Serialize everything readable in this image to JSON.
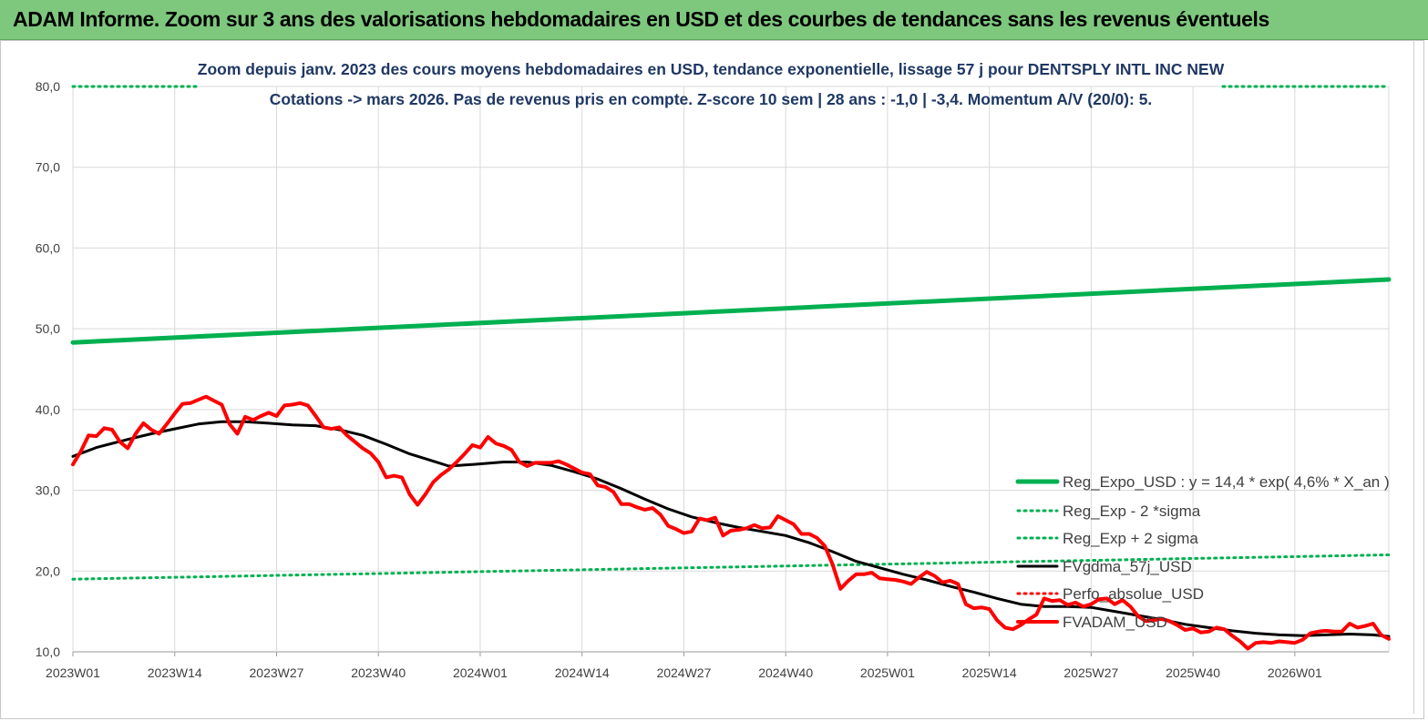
{
  "banner": {
    "title": "ADAM Informe. Zoom sur 3 ans des valorisations hebdomadaires en USD et des courbes de tendances sans les revenus éventuels"
  },
  "colors": {
    "banner_bg": "#7ec87e",
    "title_text": "#1f3864",
    "trend_green": "#00b050",
    "price_red": "#ff0000",
    "mma_black": "#000000"
  },
  "chart_data": {
    "type": "line",
    "title": "Zoom depuis janv. 2023 des cours moyens hebdomadaires en USD, tendance exponentielle, lissage 57 j pour DENTSPLY INTL INC NEW",
    "subtitle": "Cotations -> mars 2026. Pas de revenus pris en compte. Z-score 10 sem  | 28 ans : -1,0 | -3,4. Momentum A/V (20/0): 5.",
    "xlabel": "",
    "ylabel": "",
    "ylim": [
      10,
      80
    ],
    "yticks": [
      "80,0",
      "70,0",
      "60,0",
      "50,0",
      "40,0",
      "30,0",
      "20,0",
      "10,0"
    ],
    "xlim": [
      0,
      168
    ],
    "xticks": [
      {
        "label": "2023W01",
        "x": 0
      },
      {
        "label": "2023W14",
        "x": 13
      },
      {
        "label": "2023W27",
        "x": 26
      },
      {
        "label": "2023W40",
        "x": 39
      },
      {
        "label": "2024W01",
        "x": 52
      },
      {
        "label": "2024W14",
        "x": 65
      },
      {
        "label": "2024W27",
        "x": 78
      },
      {
        "label": "2024W40",
        "x": 91
      },
      {
        "label": "2025W01",
        "x": 104
      },
      {
        "label": "2025W14",
        "x": 117
      },
      {
        "label": "2025W27",
        "x": 130
      },
      {
        "label": "2025W40",
        "x": 143
      },
      {
        "label": "2026W01",
        "x": 156
      }
    ],
    "grid": true,
    "legend_position": "right",
    "series": [
      {
        "name": "Reg_Expo_USD : y = 14,4 * exp( 4,6% *  X_an )",
        "style": "solid-thick",
        "color": "#00b050",
        "points": [
          [
            0,
            48.3
          ],
          [
            168,
            56.1
          ]
        ]
      },
      {
        "name": "Reg_Exp - 2 *sigma",
        "style": "dotted",
        "color": "#00b050",
        "points": [
          [
            0,
            19.0
          ],
          [
            168,
            22.0
          ]
        ]
      },
      {
        "name": "Reg_Exp + 2 sigma",
        "style": "dotted",
        "color": "#00b050",
        "points": [
          [
            0,
            80.0
          ],
          [
            168,
            80.0
          ]
        ]
      },
      {
        "name": "FVgdma_57j_USD",
        "style": "solid",
        "color": "#000000",
        "points": [
          [
            0,
            34.2
          ],
          [
            3,
            35.3
          ],
          [
            7,
            36.3
          ],
          [
            10,
            37.0
          ],
          [
            13,
            37.6
          ],
          [
            16,
            38.2
          ],
          [
            19,
            38.5
          ],
          [
            22,
            38.5
          ],
          [
            25,
            38.3
          ],
          [
            28,
            38.1
          ],
          [
            31,
            38.0
          ],
          [
            34,
            37.5
          ],
          [
            37,
            36.8
          ],
          [
            40,
            35.7
          ],
          [
            43,
            34.5
          ],
          [
            46,
            33.6
          ],
          [
            48,
            33.0
          ],
          [
            51,
            33.2
          ],
          [
            55,
            33.5
          ],
          [
            58,
            33.5
          ],
          [
            61,
            33.1
          ],
          [
            64,
            32.3
          ],
          [
            67,
            31.4
          ],
          [
            70,
            30.2
          ],
          [
            73,
            28.9
          ],
          [
            76,
            27.7
          ],
          [
            79,
            26.7
          ],
          [
            82,
            26.0
          ],
          [
            85,
            25.4
          ],
          [
            88,
            24.9
          ],
          [
            91,
            24.4
          ],
          [
            94,
            23.5
          ],
          [
            97,
            22.4
          ],
          [
            100,
            21.2
          ],
          [
            103,
            20.4
          ],
          [
            106,
            19.6
          ],
          [
            109,
            18.9
          ],
          [
            112,
            18.1
          ],
          [
            115,
            17.4
          ],
          [
            118,
            16.6
          ],
          [
            121,
            15.9
          ],
          [
            124,
            15.6
          ],
          [
            127,
            15.6
          ],
          [
            130,
            15.5
          ],
          [
            133,
            15.0
          ],
          [
            136,
            14.5
          ],
          [
            139,
            14.0
          ],
          [
            142,
            13.4
          ],
          [
            145,
            13.0
          ],
          [
            148,
            12.6
          ],
          [
            151,
            12.3
          ],
          [
            154,
            12.1
          ],
          [
            157,
            12.0
          ],
          [
            160,
            12.1
          ],
          [
            163,
            12.2
          ],
          [
            166,
            12.1
          ],
          [
            168,
            11.9
          ]
        ]
      },
      {
        "name": "Perfo_absolue_USD",
        "style": "dotted",
        "color": "#ff0000",
        "points": []
      },
      {
        "name": "FVADAM_USD",
        "style": "solid-thick",
        "color": "#ff0000",
        "points": [
          [
            0,
            33.2
          ],
          [
            1,
            34.8
          ],
          [
            2,
            36.8
          ],
          [
            3,
            36.7
          ],
          [
            4,
            37.7
          ],
          [
            5,
            37.5
          ],
          [
            6,
            36.0
          ],
          [
            7,
            35.2
          ],
          [
            8,
            37.0
          ],
          [
            9,
            38.3
          ],
          [
            10,
            37.5
          ],
          [
            11,
            37.0
          ],
          [
            12,
            38.2
          ],
          [
            13,
            39.5
          ],
          [
            14,
            40.7
          ],
          [
            15,
            40.8
          ],
          [
            16,
            41.2
          ],
          [
            17,
            41.6
          ],
          [
            18,
            41.1
          ],
          [
            19,
            40.6
          ],
          [
            20,
            38.2
          ],
          [
            21,
            37.0
          ],
          [
            22,
            39.1
          ],
          [
            23,
            38.7
          ],
          [
            24,
            39.2
          ],
          [
            25,
            39.6
          ],
          [
            26,
            39.2
          ],
          [
            27,
            40.5
          ],
          [
            28,
            40.6
          ],
          [
            29,
            40.8
          ],
          [
            30,
            40.5
          ],
          [
            31,
            39.2
          ],
          [
            32,
            37.8
          ],
          [
            33,
            37.6
          ],
          [
            34,
            37.8
          ],
          [
            35,
            36.8
          ],
          [
            36,
            36.0
          ],
          [
            37,
            35.2
          ],
          [
            38,
            34.6
          ],
          [
            39,
            33.5
          ],
          [
            40,
            31.6
          ],
          [
            41,
            31.8
          ],
          [
            42,
            31.6
          ],
          [
            43,
            29.5
          ],
          [
            44,
            28.2
          ],
          [
            45,
            29.5
          ],
          [
            46,
            31.0
          ],
          [
            47,
            31.9
          ],
          [
            48,
            32.6
          ],
          [
            49,
            33.5
          ],
          [
            50,
            34.5
          ],
          [
            51,
            35.6
          ],
          [
            52,
            35.3
          ],
          [
            53,
            36.6
          ],
          [
            54,
            35.8
          ],
          [
            55,
            35.5
          ],
          [
            56,
            35.0
          ],
          [
            57,
            33.5
          ],
          [
            58,
            33.0
          ],
          [
            59,
            33.4
          ],
          [
            60,
            33.4
          ],
          [
            61,
            33.4
          ],
          [
            62,
            33.6
          ],
          [
            63,
            33.2
          ],
          [
            64,
            32.7
          ],
          [
            65,
            32.2
          ],
          [
            66,
            32.0
          ],
          [
            67,
            30.6
          ],
          [
            68,
            30.4
          ],
          [
            69,
            29.8
          ],
          [
            70,
            28.3
          ],
          [
            71,
            28.3
          ],
          [
            72,
            27.9
          ],
          [
            73,
            27.6
          ],
          [
            74,
            27.8
          ],
          [
            75,
            27.0
          ],
          [
            76,
            25.6
          ],
          [
            77,
            25.2
          ],
          [
            78,
            24.7
          ],
          [
            79,
            24.9
          ],
          [
            80,
            26.5
          ],
          [
            81,
            26.3
          ],
          [
            82,
            26.6
          ],
          [
            83,
            24.4
          ],
          [
            84,
            25.0
          ],
          [
            85,
            25.1
          ],
          [
            86,
            25.3
          ],
          [
            87,
            25.7
          ],
          [
            88,
            25.3
          ],
          [
            89,
            25.4
          ],
          [
            90,
            26.8
          ],
          [
            91,
            26.3
          ],
          [
            92,
            25.8
          ],
          [
            93,
            24.6
          ],
          [
            94,
            24.6
          ],
          [
            95,
            24.1
          ],
          [
            96,
            23.1
          ],
          [
            97,
            20.8
          ],
          [
            98,
            17.8
          ],
          [
            99,
            18.8
          ],
          [
            100,
            19.6
          ],
          [
            101,
            19.6
          ],
          [
            102,
            19.8
          ],
          [
            103,
            19.1
          ],
          [
            104,
            19.0
          ],
          [
            105,
            18.9
          ],
          [
            106,
            18.7
          ],
          [
            107,
            18.4
          ],
          [
            108,
            19.2
          ],
          [
            109,
            19.9
          ],
          [
            110,
            19.4
          ],
          [
            111,
            18.6
          ],
          [
            112,
            18.8
          ],
          [
            113,
            18.4
          ],
          [
            114,
            15.9
          ],
          [
            115,
            15.4
          ],
          [
            116,
            15.5
          ],
          [
            117,
            15.3
          ],
          [
            118,
            13.9
          ],
          [
            119,
            13.0
          ],
          [
            120,
            12.8
          ],
          [
            121,
            13.3
          ],
          [
            122,
            14.0
          ],
          [
            123,
            14.6
          ],
          [
            124,
            16.6
          ],
          [
            125,
            16.3
          ],
          [
            126,
            16.4
          ],
          [
            127,
            15.8
          ],
          [
            128,
            16.1
          ],
          [
            129,
            15.6
          ],
          [
            130,
            15.9
          ],
          [
            131,
            16.5
          ],
          [
            132,
            16.6
          ],
          [
            133,
            15.9
          ],
          [
            134,
            16.4
          ],
          [
            135,
            15.6
          ],
          [
            136,
            14.4
          ],
          [
            137,
            13.8
          ],
          [
            138,
            13.9
          ],
          [
            139,
            14.1
          ],
          [
            140,
            13.8
          ],
          [
            141,
            13.3
          ],
          [
            142,
            12.7
          ],
          [
            143,
            12.9
          ],
          [
            144,
            12.4
          ],
          [
            145,
            12.5
          ],
          [
            146,
            13.0
          ],
          [
            147,
            12.8
          ],
          [
            148,
            12.0
          ],
          [
            149,
            11.3
          ],
          [
            150,
            10.4
          ],
          [
            151,
            11.1
          ],
          [
            152,
            11.2
          ],
          [
            153,
            11.1
          ],
          [
            154,
            11.3
          ],
          [
            155,
            11.2
          ],
          [
            156,
            11.1
          ],
          [
            157,
            11.5
          ],
          [
            158,
            12.3
          ],
          [
            159,
            12.5
          ],
          [
            160,
            12.6
          ],
          [
            161,
            12.5
          ],
          [
            162,
            12.5
          ],
          [
            163,
            13.5
          ],
          [
            164,
            13.0
          ],
          [
            165,
            13.2
          ],
          [
            166,
            13.5
          ],
          [
            167,
            12.1
          ],
          [
            168,
            11.6
          ]
        ]
      }
    ]
  }
}
